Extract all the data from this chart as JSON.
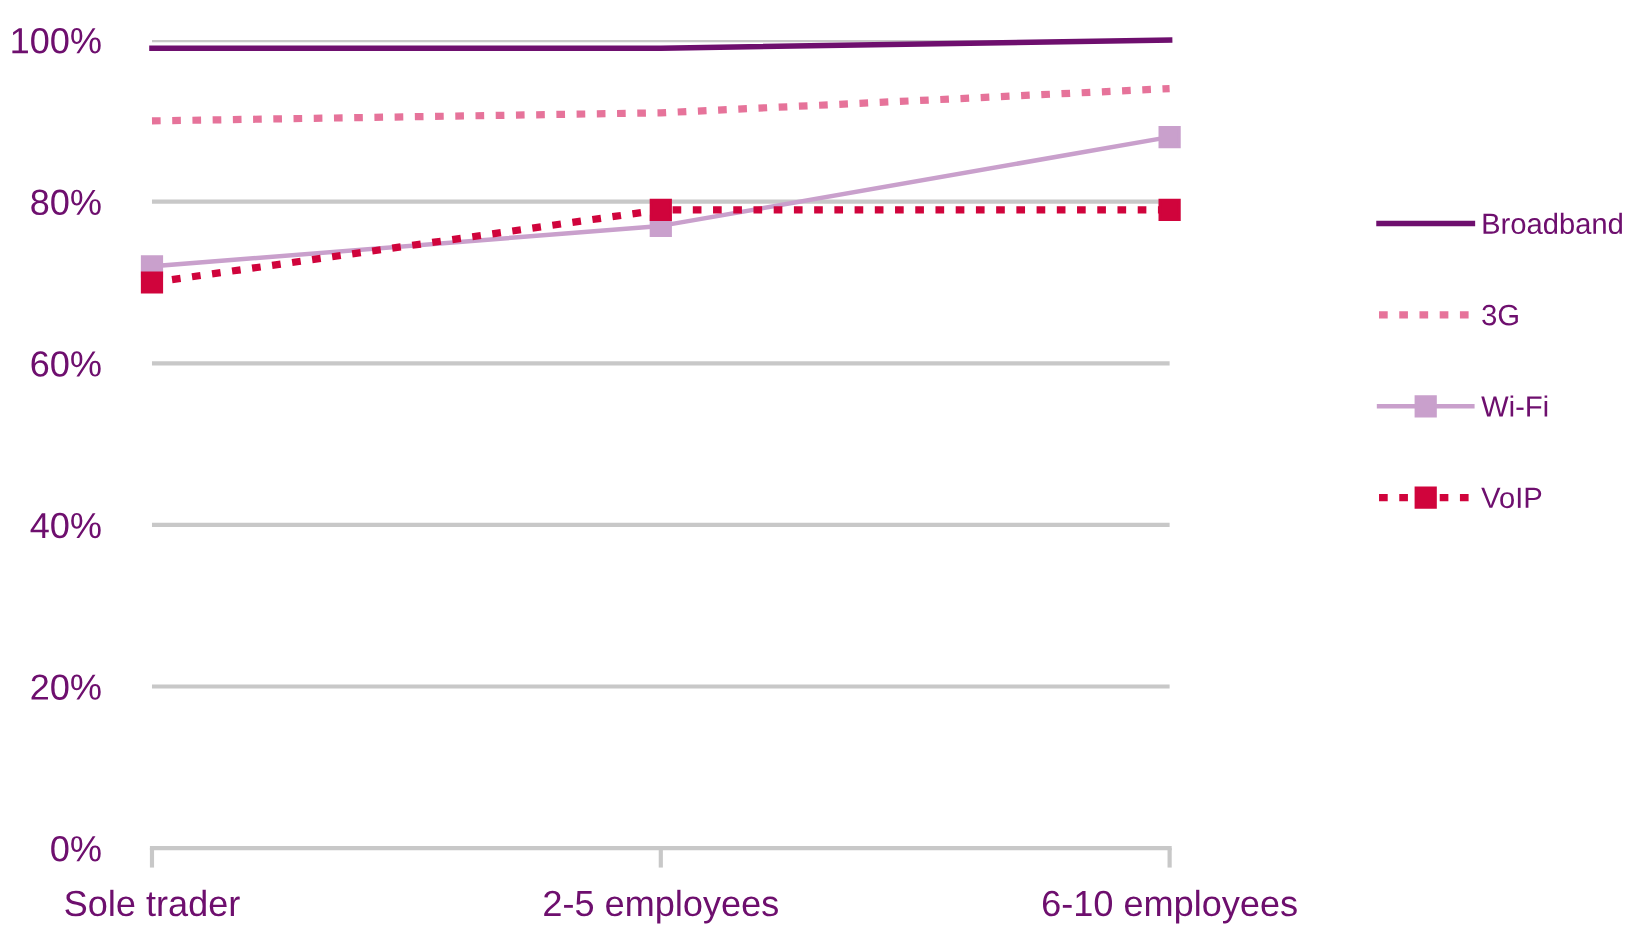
{
  "chart_data": {
    "type": "line",
    "categories": [
      "Sole trader",
      "2-5 employees",
      "6-10 employees"
    ],
    "series": [
      {
        "name": "Broadband",
        "color": "#6e0f6e",
        "values": [
          99,
          99,
          100
        ],
        "line_style": "solid",
        "marker": "none"
      },
      {
        "name": "3G",
        "color": "#e6739a",
        "values": [
          90,
          91,
          94
        ],
        "line_style": "dotted",
        "marker": "none"
      },
      {
        "name": "Wi-Fi",
        "color": "#c9a0cc",
        "values": [
          72,
          77,
          88
        ],
        "line_style": "solid",
        "marker": "square"
      },
      {
        "name": "VoIP",
        "color": "#d0043c",
        "values": [
          70,
          79,
          79
        ],
        "line_style": "dotted",
        "marker": "square"
      }
    ],
    "ylim": [
      0,
      100
    ],
    "yticks": [
      {
        "value": 0,
        "label": "0%"
      },
      {
        "value": 20,
        "label": "20%"
      },
      {
        "value": 40,
        "label": "40%"
      },
      {
        "value": 60,
        "label": "60%"
      },
      {
        "value": 80,
        "label": "80%"
      },
      {
        "value": 100,
        "label": "100%"
      }
    ],
    "grid": "y",
    "legend": "right"
  }
}
